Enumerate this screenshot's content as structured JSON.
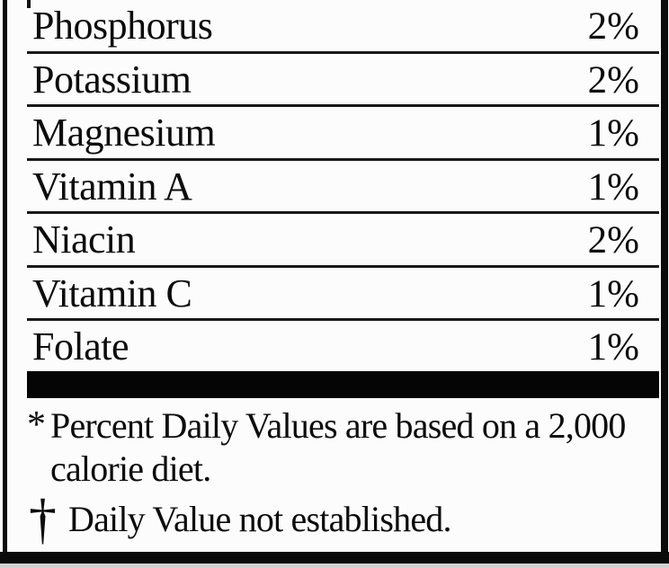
{
  "label": {
    "rows": [
      {
        "name": "Phosphorus",
        "value": "2%"
      },
      {
        "name": "Potassium",
        "value": "2%"
      },
      {
        "name": "Magnesium",
        "value": "1%"
      },
      {
        "name": "Vitamin A",
        "value": "1%"
      },
      {
        "name": "Niacin",
        "value": "2%"
      },
      {
        "name": "Vitamin C",
        "value": "1%"
      },
      {
        "name": "Folate",
        "value": "1%"
      }
    ],
    "footnotes": {
      "daily_values": {
        "marker": "*",
        "line1": "Percent Daily Values are based on a 2,000",
        "line2": "calorie diet."
      },
      "not_established": {
        "marker": "†",
        "text": "Daily Value not established."
      }
    },
    "colors": {
      "text": "#0c0c0c",
      "separator": "#191919",
      "divider_bar": "#050505",
      "frame": "#0a0a0a",
      "background": "#fcfcfc"
    }
  }
}
